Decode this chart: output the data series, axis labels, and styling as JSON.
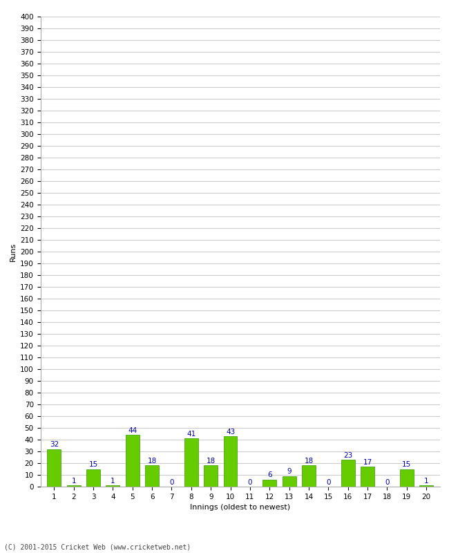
{
  "xlabel": "Innings (oldest to newest)",
  "ylabel": "Runs",
  "values": [
    32,
    1,
    15,
    1,
    44,
    18,
    0,
    41,
    18,
    43,
    0,
    6,
    9,
    18,
    0,
    23,
    17,
    0,
    15,
    1
  ],
  "categories": [
    1,
    2,
    3,
    4,
    5,
    6,
    7,
    8,
    9,
    10,
    11,
    12,
    13,
    14,
    15,
    16,
    17,
    18,
    19,
    20
  ],
  "bar_color": "#66cc00",
  "bar_edge_color": "#339900",
  "label_color": "#0000aa",
  "label_fontsize": 7.5,
  "ylim": [
    0,
    400
  ],
  "yticks": [
    0,
    10,
    20,
    30,
    40,
    50,
    60,
    70,
    80,
    90,
    100,
    110,
    120,
    130,
    140,
    150,
    160,
    170,
    180,
    190,
    200,
    210,
    220,
    230,
    240,
    250,
    260,
    270,
    280,
    290,
    300,
    310,
    320,
    330,
    340,
    350,
    360,
    370,
    380,
    390,
    400
  ],
  "grid_color": "#cccccc",
  "background_color": "#ffffff",
  "axis_fontsize": 8,
  "tick_fontsize": 7.5,
  "footer": "(C) 2001-2015 Cricket Web (www.cricketweb.net)"
}
